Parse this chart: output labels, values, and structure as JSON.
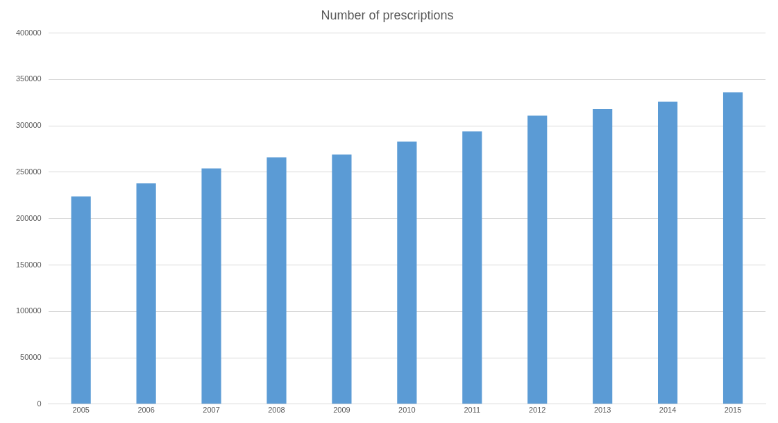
{
  "chart_data": {
    "type": "bar",
    "title": "Number of prescriptions",
    "categories": [
      "2005",
      "2006",
      "2007",
      "2008",
      "2009",
      "2010",
      "2011",
      "2012",
      "2013",
      "2014",
      "2015"
    ],
    "values": [
      224000,
      238000,
      254000,
      266000,
      269000,
      283000,
      294000,
      311000,
      318000,
      326000,
      336000
    ],
    "color": "#5b9bd5",
    "ylim": [
      0,
      400000
    ],
    "yticks": [
      0,
      50000,
      100000,
      150000,
      200000,
      250000,
      300000,
      350000,
      400000
    ],
    "grid": "y",
    "legend": false
  }
}
